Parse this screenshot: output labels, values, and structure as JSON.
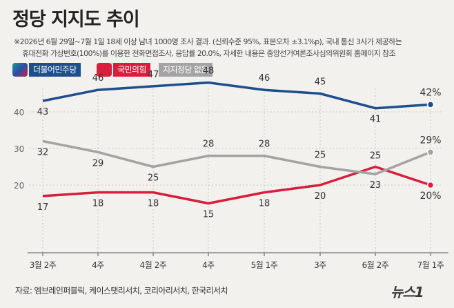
{
  "title": "정당 지지도 추이",
  "notes": [
    "※2026년 6월 29일~7월 1일 18세 이상 남녀 1000명 조사 결과. (신뢰수준 95%, 표본오차 ±3.1%p), 국내 통신 3사가 제공하는",
    "휴대전화 가상번호(100%)를 이용한 전화면접조사, 응답률 20.0%, 자세한 내용은 중앙선거여론조사심의위원회 홈페이지 참조"
  ],
  "legend": [
    {
      "label": "더불어민주당",
      "color": "#1f4e8c"
    },
    {
      "label": "국민의힘",
      "color": "#d81e3c"
    },
    {
      "label": "지지정당 없음",
      "color": "#a3a3a3"
    }
  ],
  "source": "자료: 엠브레인퍼블릭, 케이스탯리서치, 코리아리서치, 한국리서치",
  "logo": "뉴스1",
  "chart_data": {
    "type": "line",
    "categories": [
      "3월 2주",
      "4주",
      "4월 2주",
      "4주",
      "5월 1주",
      "3주",
      "6월 2주",
      "7월 1주"
    ],
    "y_ticks": [
      "20",
      "30",
      "40"
    ],
    "ylim": [
      10,
      52
    ],
    "grid": true,
    "series": [
      {
        "name": "더불어민주당",
        "color": "#1f4e8c",
        "values": [
          43,
          46,
          47,
          48,
          46,
          45,
          41,
          42
        ],
        "labels": [
          "43",
          "46",
          "47",
          "48",
          "46",
          "45",
          "41",
          "42%"
        ]
      },
      {
        "name": "국민의힘",
        "color": "#d81e3c",
        "values": [
          17,
          18,
          18,
          15,
          18,
          20,
          25,
          20
        ],
        "labels": [
          "17",
          "18",
          "18",
          "15",
          "18",
          "20",
          "25",
          "20%"
        ]
      },
      {
        "name": "지지정당 없음",
        "color": "#a3a3a3",
        "values": [
          32,
          29,
          25,
          28,
          28,
          25,
          23,
          29
        ],
        "labels": [
          "32",
          "29",
          "25",
          "28",
          "28",
          "25",
          "23",
          "29%"
        ]
      }
    ]
  }
}
